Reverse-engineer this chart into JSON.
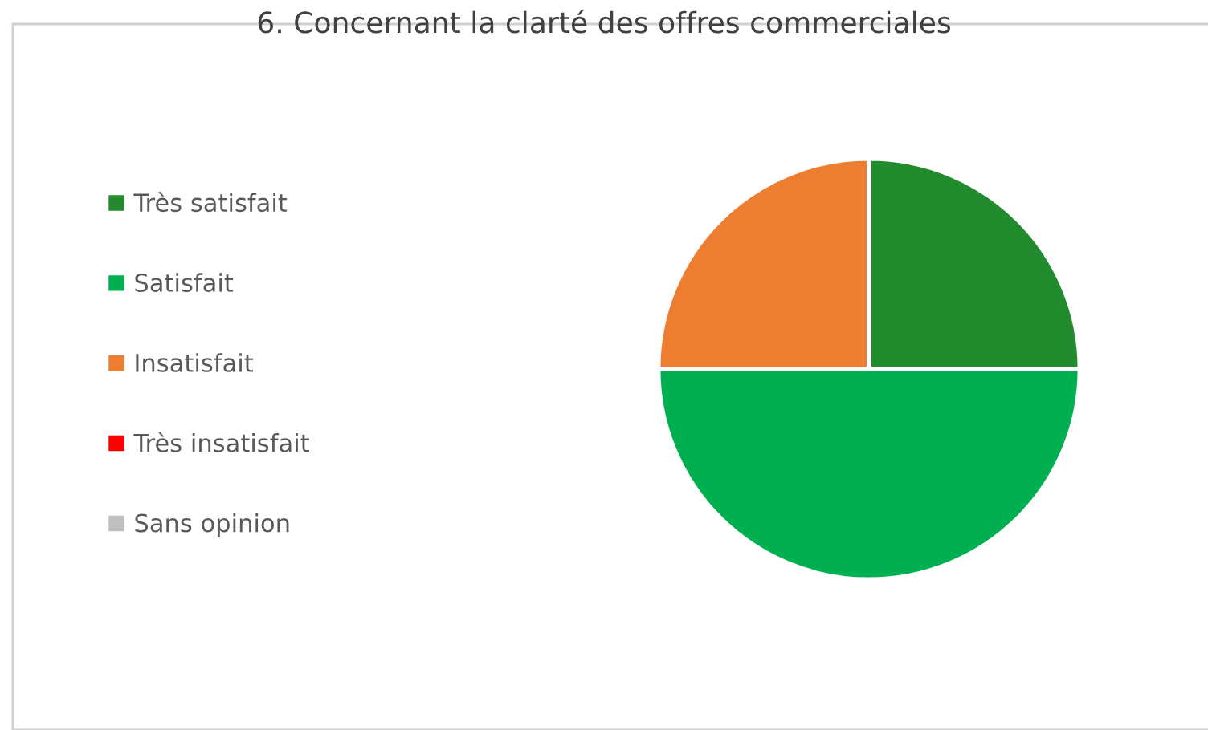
{
  "chart_data": {
    "type": "pie",
    "title": "6. Concernant la clarté des offres commerciales",
    "categories": [
      "Très satisfait",
      "Satisfait",
      "Insatisfait",
      "Très insatisfait",
      "Sans opinion"
    ],
    "values": [
      25,
      50,
      25,
      0,
      0
    ],
    "colors": [
      "#228b2e",
      "#00b050",
      "#ed7d31",
      "#ff0000",
      "#bfbfbf"
    ],
    "legend": "left"
  }
}
